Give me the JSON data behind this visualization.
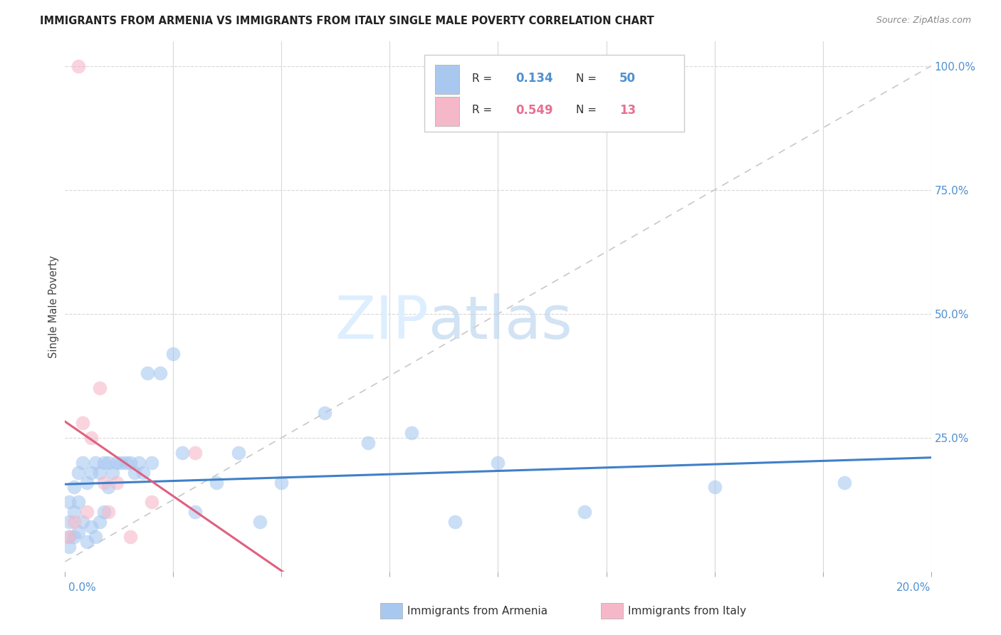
{
  "title": "IMMIGRANTS FROM ARMENIA VS IMMIGRANTS FROM ITALY SINGLE MALE POVERTY CORRELATION CHART",
  "source": "Source: ZipAtlas.com",
  "ylabel": "Single Male Poverty",
  "armenia_color": "#a8c8f0",
  "italy_color": "#f5b8c8",
  "armenia_line_color": "#4080c8",
  "italy_line_color": "#e06080",
  "diagonal_color": "#c8c8c8",
  "background_color": "#ffffff",
  "legend_R_armenia": "0.134",
  "legend_N_armenia": "50",
  "legend_R_italy": "0.549",
  "legend_N_italy": "13",
  "legend_color_blue": "#5090d0",
  "legend_color_pink": "#e87090",
  "armenia_x": [
    0.001,
    0.001,
    0.001,
    0.001,
    0.002,
    0.002,
    0.002,
    0.003,
    0.003,
    0.003,
    0.004,
    0.004,
    0.005,
    0.005,
    0.006,
    0.006,
    0.007,
    0.007,
    0.008,
    0.008,
    0.009,
    0.009,
    0.01,
    0.01,
    0.011,
    0.012,
    0.013,
    0.014,
    0.015,
    0.016,
    0.017,
    0.018,
    0.019,
    0.02,
    0.022,
    0.025,
    0.027,
    0.03,
    0.035,
    0.04,
    0.045,
    0.05,
    0.06,
    0.07,
    0.08,
    0.09,
    0.1,
    0.12,
    0.15,
    0.18
  ],
  "armenia_y": [
    0.05,
    0.03,
    0.08,
    0.12,
    0.05,
    0.1,
    0.15,
    0.06,
    0.12,
    0.18,
    0.08,
    0.2,
    0.04,
    0.16,
    0.07,
    0.18,
    0.05,
    0.2,
    0.08,
    0.18,
    0.1,
    0.2,
    0.15,
    0.2,
    0.18,
    0.2,
    0.2,
    0.2,
    0.2,
    0.18,
    0.2,
    0.18,
    0.38,
    0.2,
    0.38,
    0.42,
    0.22,
    0.1,
    0.16,
    0.22,
    0.08,
    0.16,
    0.3,
    0.24,
    0.26,
    0.08,
    0.2,
    0.1,
    0.15,
    0.16
  ],
  "italy_x": [
    0.001,
    0.002,
    0.003,
    0.004,
    0.005,
    0.006,
    0.008,
    0.009,
    0.01,
    0.012,
    0.015,
    0.02,
    0.03
  ],
  "italy_y": [
    0.05,
    0.08,
    1.0,
    0.28,
    0.1,
    0.25,
    0.35,
    0.16,
    0.1,
    0.16,
    0.05,
    0.12,
    0.22
  ],
  "xlim": [
    0.0,
    0.2
  ],
  "ylim": [
    -0.02,
    1.05
  ],
  "x_ticks_count": 9
}
